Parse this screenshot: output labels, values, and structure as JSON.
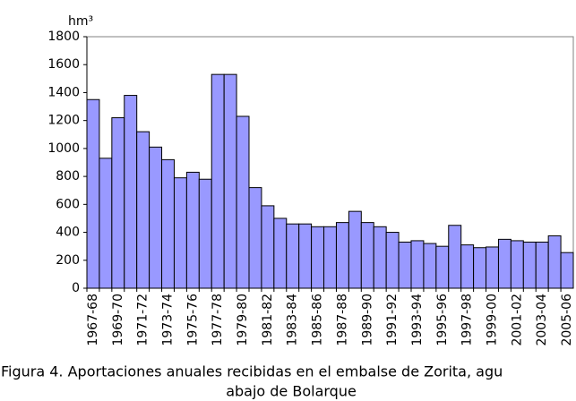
{
  "chart_data": {
    "type": "bar",
    "unit": "hm³",
    "caption": [
      "Figura 4. Aportaciones anuales recibidas en el embalse de Zorita, agu",
      "abajo de  Bolarque"
    ],
    "categories": [
      "1967-68",
      null,
      "1969-70",
      null,
      "1971-72",
      null,
      "1973-74",
      null,
      "1975-76",
      null,
      "1977-78",
      null,
      "1979-80",
      null,
      "1981-82",
      null,
      "1983-84",
      null,
      "1985-86",
      null,
      "1987-88",
      null,
      "1989-90",
      null,
      "1991-92",
      null,
      "1993-94",
      null,
      "1995-96",
      null,
      "1997-98",
      null,
      "1999-00",
      null,
      "2001-02",
      null,
      "2003-04",
      null,
      "2005-06"
    ],
    "values": [
      1350,
      930,
      1220,
      1380,
      1120,
      1010,
      920,
      790,
      830,
      780,
      1530,
      1530,
      1230,
      720,
      590,
      500,
      460,
      460,
      440,
      440,
      470,
      550,
      470,
      440,
      400,
      330,
      340,
      320,
      300,
      450,
      310,
      290,
      295,
      350,
      340,
      330,
      330,
      375,
      255
    ],
    "color": "#9999ff",
    "ylim": [
      0,
      1800
    ],
    "yticks": [
      0,
      200,
      400,
      600,
      800,
      1000,
      1200,
      1400,
      1600,
      1800
    ],
    "grid": false
  }
}
